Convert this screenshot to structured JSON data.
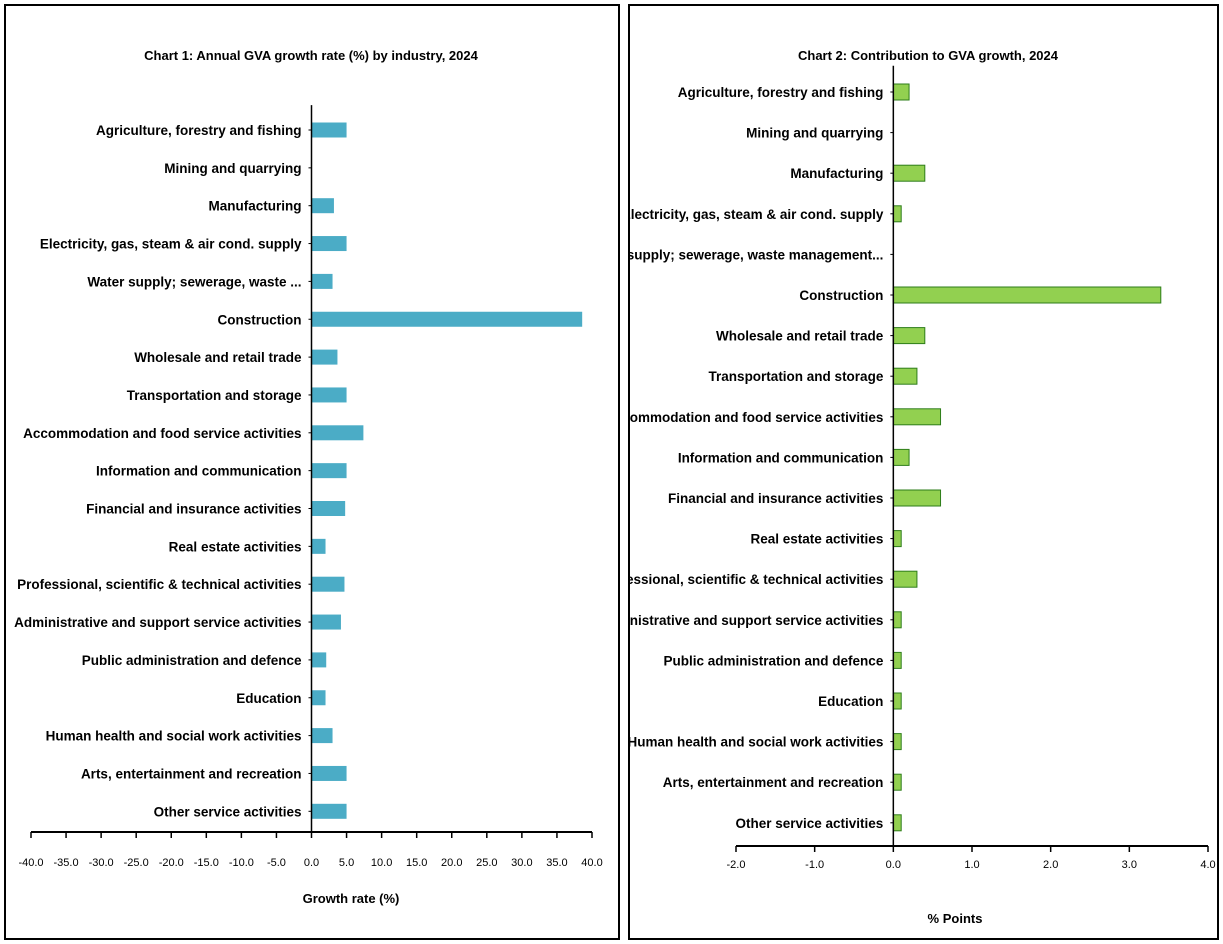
{
  "chart_data": [
    {
      "type": "bar",
      "orientation": "horizontal",
      "title": "Chart 1: Annual GVA growth rate (%) by industry, 2024",
      "xlabel": "Growth rate (%)",
      "ylabel": "",
      "xlim": [
        -40,
        40
      ],
      "xticks": [
        "-40.0",
        "-35.0",
        "-30.0",
        "-25.0",
        "-20.0",
        "-15.0",
        "-10.0",
        "-5.0",
        "0.0",
        "5.0",
        "10.0",
        "15.0",
        "20.0",
        "25.0",
        "30.0",
        "35.0",
        "40.0"
      ],
      "grid": false,
      "color": "#4bacc6",
      "categories": [
        "Agriculture, forestry and fishing",
        "Mining and quarrying",
        "Manufacturing",
        "Electricity, gas, steam & air cond. supply",
        "Water supply; sewerage, waste ...",
        "Construction",
        "Wholesale and retail trade",
        "Transportation and storage",
        "Accommodation and food service activities",
        "Information and communication",
        "Financial and insurance activities",
        "Real estate activities",
        "Professional, scientific & technical activities",
        "Administrative and support service activities",
        "Public administration and defence",
        "Education",
        "Human health and social work activities",
        "Arts, entertainment and recreation",
        "Other service activities"
      ],
      "values": [
        5.0,
        0.0,
        3.2,
        5.0,
        3.0,
        38.6,
        3.7,
        5.0,
        7.4,
        5.0,
        4.8,
        2.0,
        4.7,
        4.2,
        2.1,
        2.0,
        3.0,
        5.0,
        5.0
      ]
    },
    {
      "type": "bar",
      "orientation": "horizontal",
      "title": "Chart 2: Contribution to GVA growth, 2024",
      "xlabel": "% Points",
      "ylabel": "",
      "xlim": [
        -2,
        4
      ],
      "xticks": [
        "-2.0",
        "-1.0",
        "0.0",
        "1.0",
        "2.0",
        "3.0",
        "4.0"
      ],
      "grid": false,
      "color": "#92d050",
      "categories": [
        "Agriculture, forestry and fishing",
        "Mining and quarrying",
        "Manufacturing",
        "Electricity, gas, steam & air cond. supply",
        "Water supply; sewerage, waste management...",
        "Construction",
        "Wholesale and retail trade",
        "Transportation and storage",
        "Accommodation and food service activities",
        "Information and communication",
        "Financial and insurance activities",
        "Real estate activities",
        "Professional, scientific & technical activities",
        "Administrative and support service activities",
        "Public administration and defence",
        "Education",
        "Human health and social work activities",
        "Arts, entertainment and recreation",
        "Other service activities"
      ],
      "values": [
        0.2,
        0.0,
        0.4,
        0.1,
        0.0,
        3.4,
        0.4,
        0.3,
        0.6,
        0.2,
        0.6,
        0.1,
        0.3,
        0.1,
        0.1,
        0.1,
        0.1,
        0.1,
        0.1
      ]
    }
  ]
}
